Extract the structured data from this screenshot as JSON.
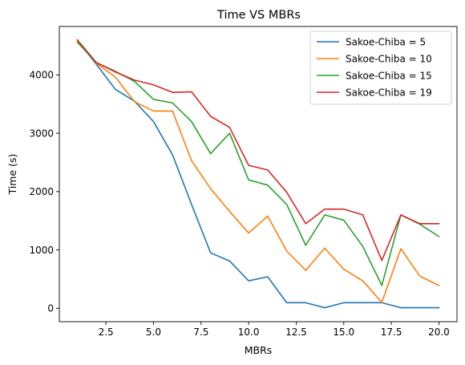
{
  "chart_data": {
    "type": "line",
    "title": "Time VS MBRs",
    "xlabel": "MBRs",
    "ylabel": "Time (s)",
    "xlim": [
      0.05,
      20.95
    ],
    "ylim": [
      -230,
      4830
    ],
    "x_ticks": [
      2.5,
      5.0,
      7.5,
      10.0,
      12.5,
      15.0,
      17.5,
      20.0
    ],
    "x_tick_labels": [
      "2.5",
      "5.0",
      "7.5",
      "10.0",
      "12.5",
      "15.0",
      "17.5",
      "20.0"
    ],
    "y_ticks": [
      0,
      1000,
      2000,
      3000,
      4000
    ],
    "y_tick_labels": [
      "0",
      "1000",
      "2000",
      "3000",
      "4000"
    ],
    "grid": false,
    "legend_position": "top-right",
    "x": [
      1,
      2,
      3,
      4,
      5,
      6,
      7,
      8,
      9,
      10,
      11,
      12,
      13,
      14,
      15,
      16,
      17,
      18,
      19,
      20
    ],
    "series": [
      {
        "name": "Sakoe-Chiba = 5",
        "color": "#1f77b4",
        "values": [
          4590,
          4180,
          3750,
          3550,
          3200,
          2630,
          1780,
          950,
          810,
          470,
          540,
          95,
          95,
          10,
          95,
          95,
          95,
          10,
          10,
          10
        ]
      },
      {
        "name": "Sakoe-Chiba = 10",
        "color": "#ff7f0e",
        "values": [
          4590,
          4200,
          3960,
          3540,
          3380,
          3380,
          2530,
          2050,
          1660,
          1290,
          1580,
          980,
          650,
          1030,
          670,
          470,
          100,
          1020,
          550,
          390
        ]
      },
      {
        "name": "Sakoe-Chiba = 15",
        "color": "#2ca02c",
        "values": [
          4560,
          4210,
          4060,
          3890,
          3580,
          3520,
          3200,
          2650,
          3000,
          2200,
          2110,
          1780,
          1080,
          1600,
          1510,
          1060,
          390,
          1600,
          1440,
          1230
        ]
      },
      {
        "name": "Sakoe-Chiba = 19",
        "color": "#d62728",
        "values": [
          4600,
          4210,
          4050,
          3910,
          3830,
          3700,
          3710,
          3290,
          3100,
          2450,
          2370,
          1990,
          1450,
          1700,
          1700,
          1600,
          820,
          1600,
          1450,
          1450
        ]
      }
    ]
  }
}
